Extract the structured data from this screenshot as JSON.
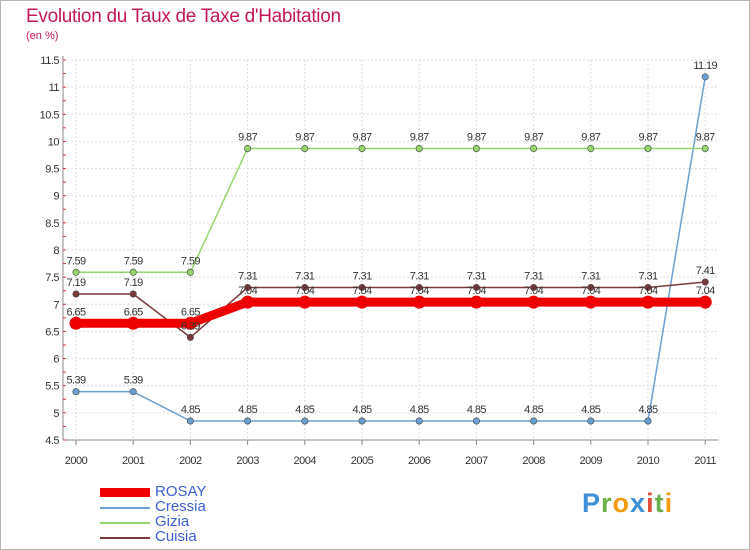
{
  "title": "Evolution du Taux de Taxe d'Habitation",
  "unit_label": "(en %)",
  "logo": {
    "letters": [
      "P",
      "r",
      "o",
      "x",
      "i",
      "t",
      "i"
    ],
    "colors": [
      "#3d8fd8",
      "#6ab04c",
      "#f39c12",
      "#3d8fd8",
      "#e74c3c",
      "#6ab04c",
      "#f39c12"
    ]
  },
  "chart_data": {
    "type": "line",
    "title": "Evolution du Taux de Taxe d'Habitation",
    "ylabel": "(en %)",
    "xlabel": "",
    "x": [
      "2000",
      "2001",
      "2002",
      "2003",
      "2004",
      "2005",
      "2006",
      "2007",
      "2008",
      "2009",
      "2010",
      "2011"
    ],
    "ylim": [
      4.5,
      11.5
    ],
    "yticks": [
      "4.5",
      "5",
      "5.5",
      "6",
      "6.5",
      "7",
      "7.5",
      "8",
      "8.5",
      "9",
      "9.5",
      "10",
      "10.5",
      "11",
      "11.5"
    ],
    "grid": true,
    "legend_position": "bottom-left",
    "series": [
      {
        "name": "ROSAY",
        "color": "#ee0000",
        "values": [
          6.65,
          6.65,
          6.65,
          7.04,
          7.04,
          7.04,
          7.04,
          7.04,
          7.04,
          7.04,
          7.04,
          7.04
        ],
        "labels": [
          "6.65",
          "6.65",
          "6.65",
          "7.04",
          "7.04",
          "7.04",
          "7.04",
          "7.04",
          "7.04",
          "7.04",
          "7.04",
          "7.04"
        ]
      },
      {
        "name": "Cressia",
        "color": "#6b9fd2",
        "values": [
          5.39,
          5.39,
          4.85,
          4.85,
          4.85,
          4.85,
          4.85,
          4.85,
          4.85,
          4.85,
          4.85,
          11.19
        ],
        "labels": [
          "5.39",
          "5.39",
          "4.85",
          "4.85",
          "4.85",
          "4.85",
          "4.85",
          "4.85",
          "4.85",
          "4.85",
          "4.85",
          "11.19"
        ]
      },
      {
        "name": "Gizia",
        "color": "#96d66f",
        "values": [
          7.59,
          7.59,
          7.59,
          9.87,
          9.87,
          9.87,
          9.87,
          9.87,
          9.87,
          9.87,
          9.87,
          9.87
        ],
        "labels": [
          "7.59",
          "7.59",
          "7.59",
          "9.87",
          "9.87",
          "9.87",
          "9.87",
          "9.87",
          "9.87",
          "9.87",
          "9.87",
          "9.87"
        ]
      },
      {
        "name": "Cuisia",
        "color": "#7a3a3a",
        "values": [
          7.19,
          7.19,
          6.39,
          7.31,
          7.31,
          7.31,
          7.31,
          7.31,
          7.31,
          7.31,
          7.31,
          7.41
        ],
        "labels": [
          "7.19",
          "7.19",
          "6.39",
          "7.31",
          "7.31",
          "7.31",
          "7.31",
          "7.31",
          "7.31",
          "7.31",
          "7.31",
          "7.41"
        ]
      }
    ]
  }
}
